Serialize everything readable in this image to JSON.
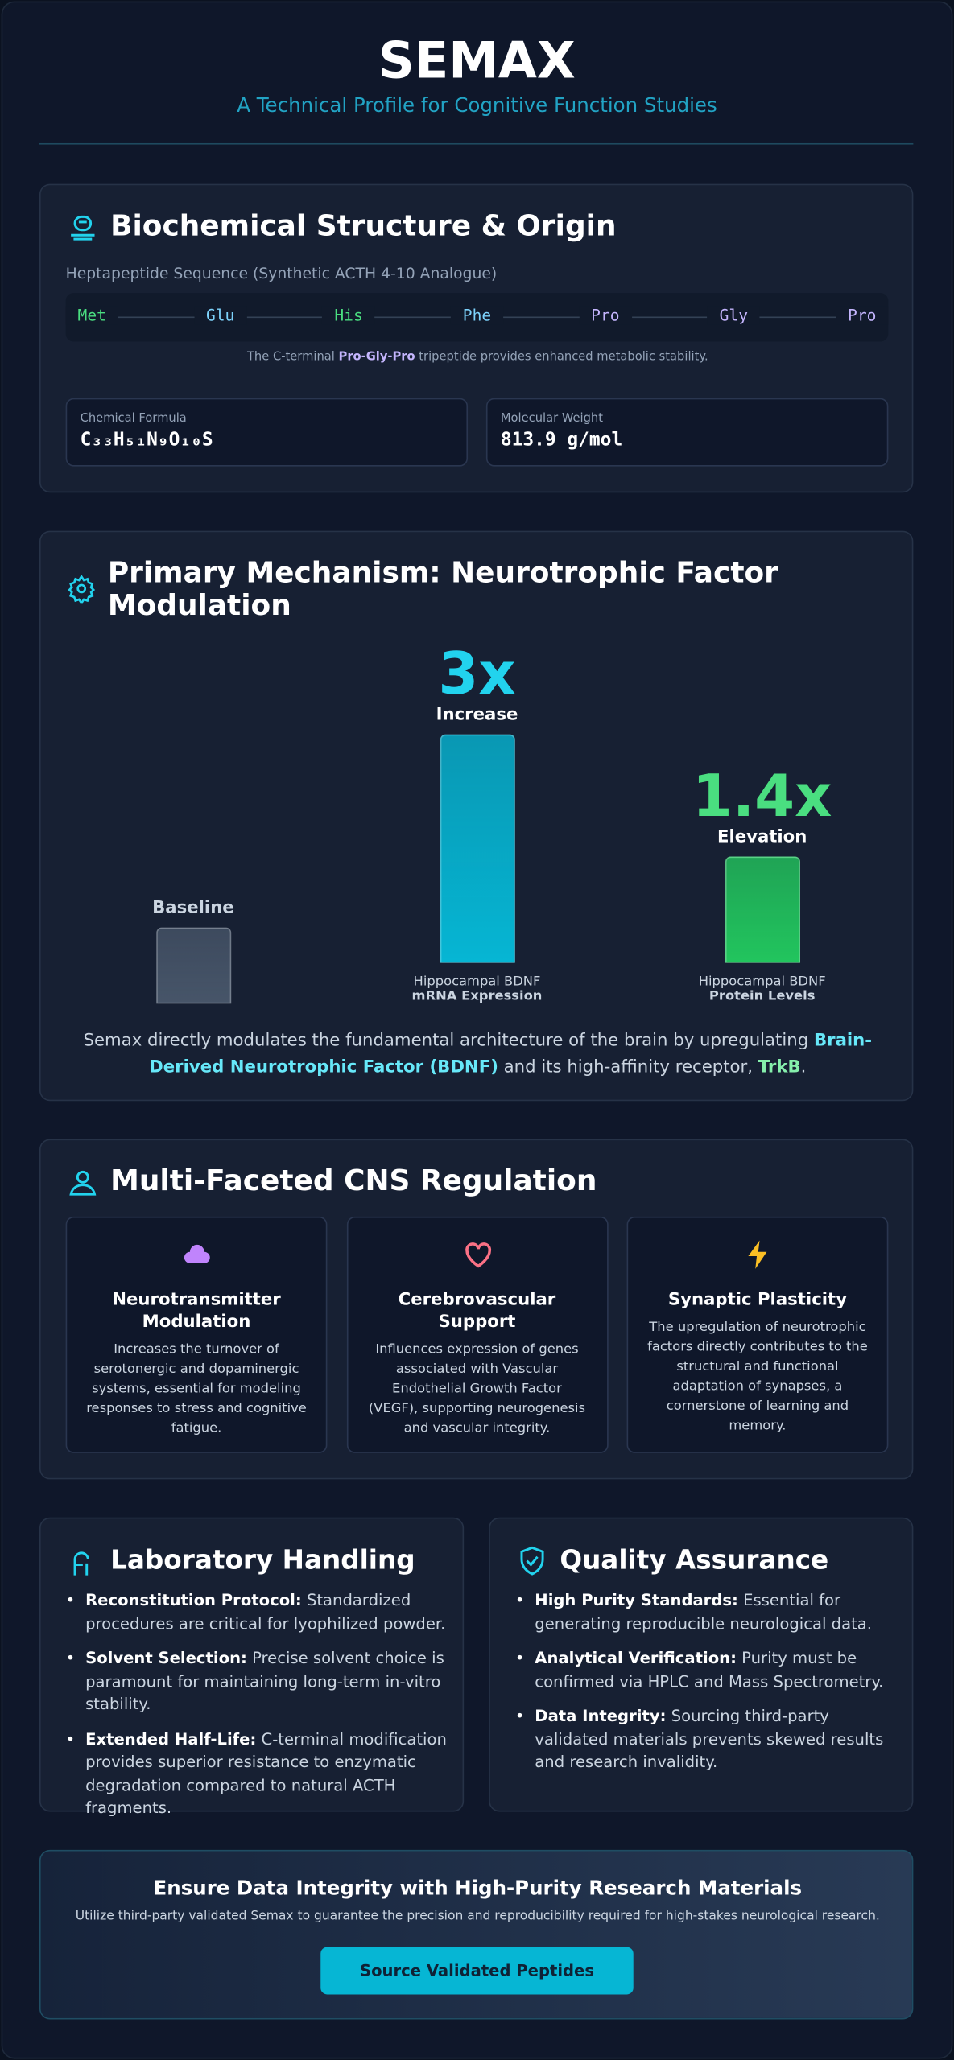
{
  "header": {
    "title": "SEMAX",
    "subtitle": "A Technical Profile for Cognitive Function Studies"
  },
  "structure": {
    "title": "Biochemical Structure & Origin",
    "sequence_label": "Heptapeptide Sequence (Synthetic ACTH 4-10 Analogue)",
    "sequence": [
      {
        "name": "Met",
        "color": "#4ade80"
      },
      {
        "name": "Glu",
        "color": "#7dd3fc"
      },
      {
        "name": "His",
        "color": "#4ade80"
      },
      {
        "name": "Phe",
        "color": "#7dd3fc"
      },
      {
        "name": "Pro",
        "color": "#c4b5fd"
      },
      {
        "name": "Gly",
        "color": "#c4b5fd"
      },
      {
        "name": "Pro",
        "color": "#c4b5fd"
      }
    ],
    "note": [
      "The C-terminal ",
      "Pro-Gly-Pro",
      " tripeptide provides enhanced metabolic stability."
    ],
    "properties": [
      {
        "label": "Chemical Formula",
        "value": "C₃₃H₅₁N₉O₁₀S"
      },
      {
        "label": "Molecular Weight",
        "value": "813.9 g/mol"
      }
    ]
  },
  "mechanism": {
    "title": "Primary Mechanism: Neurotrophic Factor Modulation",
    "description": [
      "Semax directly modulates the fundamental architecture of the brain by upregulating ",
      "Brain-Derived Neurotrophic Factor (BDNF)",
      " and its high-affinity receptor, ",
      "TrkB",
      "."
    ]
  },
  "chart_data": {
    "type": "bar",
    "categories": [
      null,
      "Hippocampal BDNF",
      "Hippocampal BDNF"
    ],
    "category_details": [
      null,
      "mRNA Expression",
      "Protein Levels"
    ],
    "values": [
      1,
      3,
      1.4
    ],
    "value_labels": [
      "Baseline",
      "3x",
      "1.4x"
    ],
    "value_captions": [
      null,
      "Increase",
      "Elevation"
    ],
    "colors": [
      "#475569",
      "#06b6d4",
      "#22c55e"
    ],
    "label_colors": [
      "#cbd5e1",
      "#22d3ee",
      "#4ade80"
    ]
  },
  "regulation": {
    "title": "Multi-Faceted CNS Regulation",
    "cards": [
      {
        "title": "Neurotransmitter Modulation",
        "text": "Increases the turnover of serotonergic and dopaminergic systems, essential for modeling responses to stress and cognitive fatigue."
      },
      {
        "title": "Cerebrovascular Support",
        "text": "Influences expression of genes associated with Vascular Endothelial Growth Factor (VEGF), supporting neurogenesis and vascular integrity."
      },
      {
        "title": "Synaptic Plasticity",
        "text": "The upregulation of neurotrophic factors directly contributes to the structural and functional adaptation of synapses, a cornerstone of learning and memory."
      }
    ]
  },
  "handling": {
    "title": "Laboratory Handling",
    "items": [
      {
        "label": "Reconstitution Protocol:",
        "text": " Standardized procedures are critical for lyophilized powder."
      },
      {
        "label": "Solvent Selection:",
        "text": " Precise solvent choice is paramount for maintaining long-term in-vitro stability."
      },
      {
        "label": "Extended Half-Life:",
        "text": " C-terminal modification provides superior resistance to enzymatic degradation compared to natural ACTH fragments."
      }
    ]
  },
  "quality": {
    "title": "Quality Assurance",
    "items": [
      {
        "label": "High Purity Standards:",
        "text": " Essential for generating reproducible neurological data."
      },
      {
        "label": "Analytical Verification:",
        "text": " Purity must be confirmed via HPLC and Mass Spectrometry."
      },
      {
        "label": "Data Integrity:",
        "text": " Sourcing third-party validated materials prevents skewed results and research invalidity."
      }
    ]
  },
  "cta": {
    "title": "Ensure Data Integrity with High-Purity Research Materials",
    "text": "Utilize third-party validated Semax to guarantee the precision and reproducibility required for high-stakes neurological research.",
    "button": "Source Validated Peptides"
  }
}
